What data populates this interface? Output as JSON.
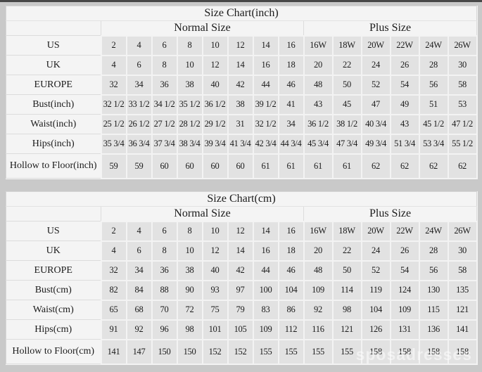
{
  "watermark": "sposadresses",
  "chart_data": [
    {
      "type": "table",
      "title": "Size Chart(inch)",
      "column_groups": [
        {
          "label": "Normal Size",
          "span": 8
        },
        {
          "label": "Plus Size",
          "span": 6
        }
      ],
      "rows": [
        {
          "label": "US",
          "normal": [
            "2",
            "4",
            "6",
            "8",
            "10",
            "12",
            "14",
            "16"
          ],
          "plus": [
            "16W",
            "18W",
            "20W",
            "22W",
            "24W",
            "26W"
          ]
        },
        {
          "label": "UK",
          "normal": [
            "4",
            "6",
            "8",
            "10",
            "12",
            "14",
            "16",
            "18"
          ],
          "plus": [
            "20",
            "22",
            "24",
            "26",
            "28",
            "30"
          ]
        },
        {
          "label": "EUROPE",
          "normal": [
            "32",
            "34",
            "36",
            "38",
            "40",
            "42",
            "44",
            "46"
          ],
          "plus": [
            "48",
            "50",
            "52",
            "54",
            "56",
            "58"
          ]
        },
        {
          "label": "Bust(inch)",
          "normal": [
            "32 1/2",
            "33 1/2",
            "34 1/2",
            "35 1/2",
            "36 1/2",
            "38",
            "39 1/2",
            "41"
          ],
          "plus": [
            "43",
            "45",
            "47",
            "49",
            "51",
            "53"
          ]
        },
        {
          "label": "Waist(inch)",
          "normal": [
            "25 1/2",
            "26 1/2",
            "27 1/2",
            "28 1/2",
            "29 1/2",
            "31",
            "32 1/2",
            "34"
          ],
          "plus": [
            "36 1/2",
            "38 1/2",
            "40 3/4",
            "43",
            "45 1/2",
            "47 1/2"
          ]
        },
        {
          "label": "Hips(inch)",
          "normal": [
            "35 3/4",
            "36 3/4",
            "37 3/4",
            "38 3/4",
            "39 3/4",
            "41 3/4",
            "42 3/4",
            "44 3/4"
          ],
          "plus": [
            "45 3/4",
            "47 3/4",
            "49 3/4",
            "51 3/4",
            "53 3/4",
            "55 1/2"
          ]
        },
        {
          "label": "Hollow to Floor(inch)",
          "normal": [
            "59",
            "59",
            "60",
            "60",
            "60",
            "60",
            "61",
            "61"
          ],
          "plus": [
            "61",
            "61",
            "62",
            "62",
            "62",
            "62"
          ]
        }
      ]
    },
    {
      "type": "table",
      "title": "Size Chart(cm)",
      "column_groups": [
        {
          "label": "Normal Size",
          "span": 8
        },
        {
          "label": "Plus Size",
          "span": 6
        }
      ],
      "rows": [
        {
          "label": "US",
          "normal": [
            "2",
            "4",
            "6",
            "8",
            "10",
            "12",
            "14",
            "16"
          ],
          "plus": [
            "16W",
            "18W",
            "20W",
            "22W",
            "24W",
            "26W"
          ]
        },
        {
          "label": "UK",
          "normal": [
            "4",
            "6",
            "8",
            "10",
            "12",
            "14",
            "16",
            "18"
          ],
          "plus": [
            "20",
            "22",
            "24",
            "26",
            "28",
            "30"
          ]
        },
        {
          "label": "EUROPE",
          "normal": [
            "32",
            "34",
            "36",
            "38",
            "40",
            "42",
            "44",
            "46"
          ],
          "plus": [
            "48",
            "50",
            "52",
            "54",
            "56",
            "58"
          ]
        },
        {
          "label": "Bust(cm)",
          "normal": [
            "82",
            "84",
            "88",
            "90",
            "93",
            "97",
            "100",
            "104"
          ],
          "plus": [
            "109",
            "114",
            "119",
            "124",
            "130",
            "135"
          ]
        },
        {
          "label": "Waist(cm)",
          "normal": [
            "65",
            "68",
            "70",
            "72",
            "75",
            "79",
            "83",
            "86"
          ],
          "plus": [
            "92",
            "98",
            "104",
            "109",
            "115",
            "121"
          ]
        },
        {
          "label": "Hips(cm)",
          "normal": [
            "91",
            "92",
            "96",
            "98",
            "101",
            "105",
            "109",
            "112"
          ],
          "plus": [
            "116",
            "121",
            "126",
            "131",
            "136",
            "141"
          ]
        },
        {
          "label": "Hollow to Floor(cm)",
          "normal": [
            "141",
            "147",
            "150",
            "150",
            "152",
            "152",
            "155",
            "155"
          ],
          "plus": [
            "155",
            "155",
            "158",
            "158",
            "158",
            "158"
          ]
        }
      ]
    }
  ],
  "colors": {
    "page_background": "#c9c9c9",
    "table_background": "#f4f4f4",
    "data_cell_background": "#e2e2e2",
    "grid_line": "#dcdcdc",
    "text": "#1b1b1b",
    "top_strip": "#474747"
  }
}
